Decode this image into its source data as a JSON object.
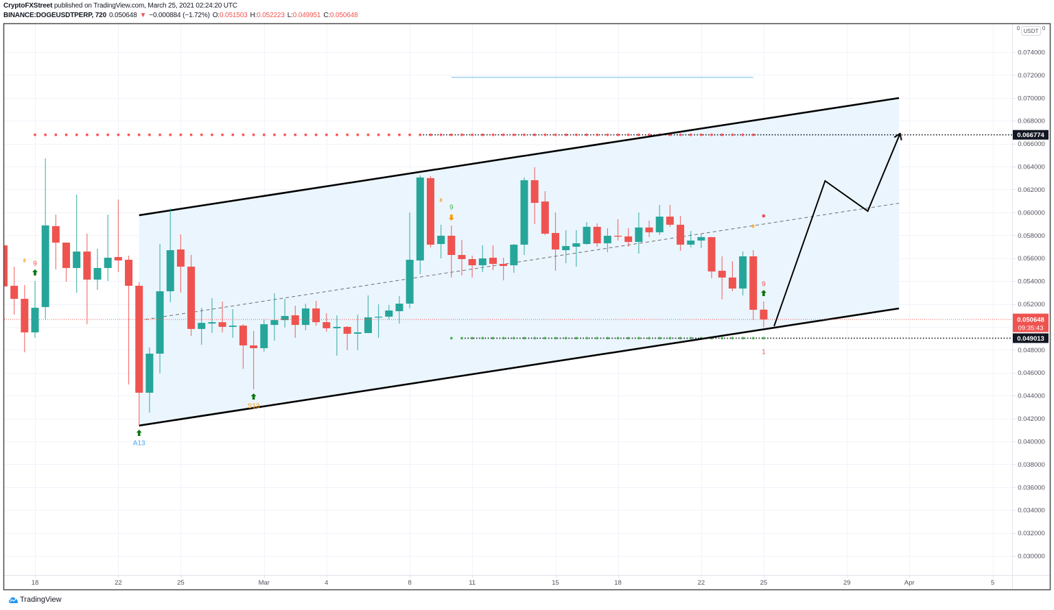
{
  "header": {
    "author": "CryptoFXStreet",
    "published_text": " published on TradingView.com, March 25, 2021 02:24:20 UTC",
    "symbol": "BINANCE:DOGEUSDTPERP, 720",
    "last_price": "0.050648",
    "change_arrow": "▼",
    "change": "−0.000884 (−1.72%)",
    "ohlc": [
      {
        "label": "O:",
        "value": "0.051503"
      },
      {
        "label": "H:",
        "value": "0.052223"
      },
      {
        "label": "L:",
        "value": "0.049951"
      },
      {
        "label": "C:",
        "value": "0.050648"
      }
    ]
  },
  "price_axis": {
    "currency": "USDT",
    "corner_left": "0",
    "corner_right": "0"
  },
  "footer": {
    "brand": "TradingView",
    "logo_icon": "tradingview-logo-icon"
  },
  "colors": {
    "up": "#26a69a",
    "down": "#ef5350",
    "grid": "#f0f3fa",
    "channel_fill": "#ebf5fe",
    "channel_line": "#000000",
    "median_line": "#6b6b6b",
    "axis_text": "#50535e",
    "frame": "#4a4a4a",
    "separator": "#e0e3eb"
  },
  "chart_data": {
    "type": "candlestick",
    "title": "BINANCE:DOGEUSDTPERP, 720",
    "interval_minutes": 720,
    "xlabel": "",
    "ylabel": "USDT",
    "ylim": [
      0.028325,
      0.076454
    ],
    "grid": true,
    "y_ticks": [
      "0.074000",
      "0.072000",
      "0.070000",
      "0.068000",
      "0.066000",
      "0.064000",
      "0.062000",
      "0.060000",
      "0.058000",
      "0.056000",
      "0.054000",
      "0.052000",
      "0.050000",
      "0.048000",
      "0.046000",
      "0.044000",
      "0.042000",
      "0.040000",
      "0.038000",
      "0.036000",
      "0.034000",
      "0.032000",
      "0.030000"
    ],
    "x_ticks": [
      {
        "label": "18",
        "index": 3
      },
      {
        "label": "22",
        "index": 11
      },
      {
        "label": "25",
        "index": 17
      },
      {
        "label": "Mar",
        "index": 25
      },
      {
        "label": "4",
        "index": 31
      },
      {
        "label": "8",
        "index": 39
      },
      {
        "label": "11",
        "index": 45
      },
      {
        "label": "15",
        "index": 53
      },
      {
        "label": "18",
        "index": 59
      },
      {
        "label": "22",
        "index": 67
      },
      {
        "label": "25",
        "index": 73
      },
      {
        "label": "29",
        "index": 81
      },
      {
        "label": "Apr",
        "index": 87
      },
      {
        "label": "5",
        "index": 95
      }
    ],
    "candle_fields": [
      "time",
      "open",
      "high",
      "low",
      "close"
    ],
    "candles": [
      [
        "Feb 16 12:00",
        0.05712,
        0.05862,
        0.05059,
        0.05353
      ],
      [
        "Feb 17 00:00",
        0.05359,
        0.05526,
        0.05107,
        0.05245
      ],
      [
        "Feb 17 12:00",
        0.05245,
        0.05365,
        0.04778,
        0.04952
      ],
      [
        "Feb 18 00:00",
        0.04952,
        0.05401,
        0.04904,
        0.05167
      ],
      [
        "Feb 18 12:00",
        0.05173,
        0.06472,
        0.05065,
        0.05886
      ],
      [
        "Feb 19 00:00",
        0.0588,
        0.05981,
        0.05502,
        0.05736
      ],
      [
        "Feb 19 12:00",
        0.05736,
        0.05736,
        0.05395,
        0.05514
      ],
      [
        "Feb 20 00:00",
        0.05514,
        0.06155,
        0.05299,
        0.05658
      ],
      [
        "Feb 20 12:00",
        0.05658,
        0.05814,
        0.05023,
        0.05413
      ],
      [
        "Feb 21 00:00",
        0.05413,
        0.05682,
        0.05323,
        0.05514
      ],
      [
        "Feb 21 12:00",
        0.05514,
        0.05981,
        0.05401,
        0.05604
      ],
      [
        "Feb 22 00:00",
        0.0561,
        0.06113,
        0.05479,
        0.0558
      ],
      [
        "Feb 22 12:00",
        0.05586,
        0.05622,
        0.04497,
        0.05359
      ],
      [
        "Feb 23 00:00",
        0.05359,
        0.05389,
        0.04138,
        0.04425
      ],
      [
        "Feb 23 12:00",
        0.04425,
        0.0482,
        0.04251,
        0.04766
      ],
      [
        "Feb 24 00:00",
        0.04766,
        0.05724,
        0.04593,
        0.05311
      ],
      [
        "Feb 24 12:00",
        0.05311,
        0.06035,
        0.05215,
        0.0567
      ],
      [
        "Feb 25 00:00",
        0.05676,
        0.05808,
        0.05299,
        0.05526
      ],
      [
        "Feb 25 12:00",
        0.05526,
        0.05628,
        0.04922,
        0.04982
      ],
      [
        "Feb 26 00:00",
        0.04982,
        0.05167,
        0.04844,
        0.05035
      ],
      [
        "Feb 26 12:00",
        0.05029,
        0.05251,
        0.04946,
        0.05041
      ],
      [
        "Feb 27 00:00",
        0.05041,
        0.05221,
        0.04952,
        0.05
      ],
      [
        "Feb 27 12:00",
        0.05,
        0.05155,
        0.04904,
        0.05011
      ],
      [
        "Feb 28 00:00",
        0.05011,
        0.05023,
        0.04634,
        0.04838
      ],
      [
        "Feb 28 12:00",
        0.04838,
        0.04964,
        0.04455,
        0.04814
      ],
      [
        "Mar 1 00:00",
        0.04814,
        0.05065,
        0.04784,
        0.05023
      ],
      [
        "Mar 1 12:00",
        0.05017,
        0.05293,
        0.0488,
        0.05059
      ],
      [
        "Mar 2 00:00",
        0.05059,
        0.05245,
        0.04994,
        0.05095
      ],
      [
        "Mar 2 12:00",
        0.05101,
        0.05185,
        0.04904,
        0.05017
      ],
      [
        "Mar 3 00:00",
        0.05017,
        0.05203,
        0.0497,
        0.05161
      ],
      [
        "Mar 3 12:00",
        0.05161,
        0.05227,
        0.05011,
        0.05041
      ],
      [
        "Mar 4 00:00",
        0.05041,
        0.05119,
        0.04958,
        0.04988
      ],
      [
        "Mar 4 12:00",
        0.04988,
        0.05101,
        0.04748,
        0.05
      ],
      [
        "Mar 5 00:00",
        0.05,
        0.05006,
        0.04796,
        0.0494
      ],
      [
        "Mar 5 12:00",
        0.0494,
        0.05107,
        0.04796,
        0.04952
      ],
      [
        "Mar 6 00:00",
        0.04946,
        0.05275,
        0.04946,
        0.05083
      ],
      [
        "Mar 6 12:00",
        0.05083,
        0.05197,
        0.04904,
        0.05089
      ],
      [
        "Mar 7 00:00",
        0.05089,
        0.05191,
        0.05065,
        0.05143
      ],
      [
        "Mar 7 12:00",
        0.05137,
        0.05269,
        0.05029,
        0.05203
      ],
      [
        "Mar 8 00:00",
        0.05203,
        0.05999,
        0.05161,
        0.05586
      ],
      [
        "Mar 8 12:00",
        0.0558,
        0.06323,
        0.05461,
        0.06305
      ],
      [
        "Mar 9 00:00",
        0.06299,
        0.06317,
        0.05694,
        0.05718
      ],
      [
        "Mar 9 12:00",
        0.05724,
        0.05892,
        0.05598,
        0.05796
      ],
      [
        "Mar 10 00:00",
        0.05796,
        0.05886,
        0.05431,
        0.05628
      ],
      [
        "Mar 10 12:00",
        0.05628,
        0.0576,
        0.05449,
        0.05592
      ],
      [
        "Mar 11 00:00",
        0.05592,
        0.05622,
        0.05431,
        0.05538
      ],
      [
        "Mar 11 12:00",
        0.05538,
        0.05712,
        0.05479,
        0.05598
      ],
      [
        "Mar 12 00:00",
        0.05604,
        0.05712,
        0.05496,
        0.0555
      ],
      [
        "Mar 12 12:00",
        0.0555,
        0.05604,
        0.05407,
        0.05532
      ],
      [
        "Mar 13 00:00",
        0.05538,
        0.05724,
        0.05473,
        0.05718
      ],
      [
        "Mar 13 12:00",
        0.05718,
        0.06305,
        0.05628,
        0.06281
      ],
      [
        "Mar 14 00:00",
        0.06281,
        0.06394,
        0.05898,
        0.06083
      ],
      [
        "Mar 14 12:00",
        0.06095,
        0.06185,
        0.05802,
        0.05814
      ],
      [
        "Mar 15 00:00",
        0.0582,
        0.05999,
        0.0549,
        0.05676
      ],
      [
        "Mar 15 12:00",
        0.0567,
        0.05844,
        0.05556,
        0.05706
      ],
      [
        "Mar 16 00:00",
        0.057,
        0.05844,
        0.05526,
        0.0573
      ],
      [
        "Mar 16 12:00",
        0.05724,
        0.05915,
        0.05718,
        0.05874
      ],
      [
        "Mar 17 00:00",
        0.05874,
        0.05904,
        0.057,
        0.0573
      ],
      [
        "Mar 17 12:00",
        0.0573,
        0.05862,
        0.05652,
        0.05796
      ],
      [
        "Mar 18 00:00",
        0.05796,
        0.0594,
        0.05754,
        0.0579
      ],
      [
        "Mar 18 12:00",
        0.0579,
        0.05862,
        0.057,
        0.05742
      ],
      [
        "Mar 19 00:00",
        0.05742,
        0.05999,
        0.0564,
        0.05868
      ],
      [
        "Mar 19 12:00",
        0.05868,
        0.05928,
        0.05784,
        0.05826
      ],
      [
        "Mar 20 00:00",
        0.05826,
        0.06065,
        0.05802,
        0.05963
      ],
      [
        "Mar 20 12:00",
        0.05963,
        0.06065,
        0.05874,
        0.05892
      ],
      [
        "Mar 21 00:00",
        0.05892,
        0.05969,
        0.05664,
        0.05718
      ],
      [
        "Mar 21 12:00",
        0.05718,
        0.05838,
        0.05694,
        0.05754
      ],
      [
        "Mar 22 00:00",
        0.05754,
        0.05808,
        0.05688,
        0.05784
      ],
      [
        "Mar 22 12:00",
        0.05784,
        0.05784,
        0.05425,
        0.05484
      ],
      [
        "Mar 23 00:00",
        0.0549,
        0.05616,
        0.05239,
        0.05431
      ],
      [
        "Mar 23 12:00",
        0.05431,
        0.05574,
        0.05311,
        0.05335
      ],
      [
        "Mar 24 00:00",
        0.05335,
        0.05658,
        0.05275,
        0.05616
      ],
      [
        "Mar 24 12:00",
        0.05616,
        0.0567,
        0.05059,
        0.05149
      ],
      [
        "Mar 25 00:00",
        0.051503,
        0.052223,
        0.049951,
        0.050648
      ]
    ],
    "price_labels": [
      {
        "value": "0.066774",
        "price": 0.066774,
        "bg": "#131722",
        "fg": "#ffffff"
      },
      {
        "value": "0.050648",
        "sub": "09:35:43",
        "price": 0.050648,
        "bg": "#ef5350",
        "fg": "#ffffff"
      },
      {
        "value": "0.049013",
        "price": 0.049013,
        "bg": "#131722",
        "fg": "#ffffff"
      }
    ],
    "drawings": {
      "parallel_channel": {
        "upper": [
          {
            "index": 13,
            "price": 0.05975
          },
          {
            "index": 86,
            "price": 0.06999
          }
        ],
        "lower": [
          {
            "index": 13,
            "price": 0.04138
          },
          {
            "index": 86,
            "price": 0.05161
          }
        ],
        "median_dashed": true
      },
      "projection_path": [
        {
          "index": 74.0,
          "price": 0.05006
        },
        {
          "index": 78.9,
          "price": 0.06275
        },
        {
          "index": 83.0,
          "price": 0.06011
        },
        {
          "index": 86.1,
          "price": 0.06688
        }
      ],
      "horizontal_lines": [
        {
          "name": "light-blue-level",
          "price": 0.07179,
          "from_index": 43,
          "to_index": 72,
          "style": "solid",
          "color": "#b3dbf5"
        },
        {
          "name": "resistance-dotted-line",
          "price": 0.066774,
          "from_index": 40,
          "to_index": null,
          "style": "dotted",
          "color": "#131722"
        },
        {
          "name": "resistance-dots",
          "price": 0.066774,
          "from_index": 3,
          "to_index": 72,
          "style": "dots",
          "color": "#ff5252"
        },
        {
          "name": "support-dotted-line",
          "price": 0.049013,
          "from_index": 44,
          "to_index": null,
          "style": "dotted",
          "color": "#131722"
        },
        {
          "name": "support-dots",
          "price": 0.049013,
          "from_index": 43,
          "to_index": 73,
          "style": "dots",
          "color": "#4caf50"
        }
      ],
      "last_price_line": {
        "price": 0.050648,
        "color": "#ef5350"
      }
    },
    "markers": [
      {
        "type": "text",
        "text": "8",
        "index": 2,
        "price": 0.0558,
        "color": "#ff9800",
        "size": 7
      },
      {
        "type": "text",
        "text": "9",
        "index": 3,
        "price": 0.05556,
        "color": "#ef5350",
        "size": 10
      },
      {
        "type": "arrow_up",
        "index": 3,
        "price": 0.05473,
        "color": "#0d730d"
      },
      {
        "type": "arrow_up",
        "index": 13,
        "price": 0.04072,
        "color": "#0d730d"
      },
      {
        "type": "text",
        "text": "A13",
        "index": 13,
        "price": 0.03988,
        "color": "#42a5f5",
        "size": 10
      },
      {
        "type": "arrow_up",
        "index": 24,
        "price": 0.04389,
        "color": "#0d730d"
      },
      {
        "type": "text",
        "text": "S13",
        "index": 24,
        "price": 0.04311,
        "color": "#ff9800",
        "size": 10
      },
      {
        "type": "text",
        "text": "8",
        "index": 42,
        "price": 0.06107,
        "color": "#ff9800",
        "size": 7
      },
      {
        "type": "text",
        "text": "9",
        "index": 43,
        "price": 0.06047,
        "color": "#4caf50",
        "size": 10
      },
      {
        "type": "arrow_down",
        "index": 43,
        "price": 0.05957,
        "color": "#ff9800"
      },
      {
        "type": "text",
        "text": "8",
        "index": 72,
        "price": 0.0588,
        "color": "#ff9800",
        "size": 7
      },
      {
        "type": "dot",
        "index": 73,
        "price": 0.05969,
        "color": "#ef5350"
      },
      {
        "type": "text",
        "text": "9",
        "index": 73,
        "price": 0.05377,
        "color": "#ef5350",
        "size": 10
      },
      {
        "type": "arrow_up",
        "index": 73,
        "price": 0.05293,
        "color": "#0d730d"
      },
      {
        "type": "text",
        "text": "1",
        "index": 73,
        "price": 0.04784,
        "color": "#ef5350",
        "size": 10
      }
    ]
  }
}
